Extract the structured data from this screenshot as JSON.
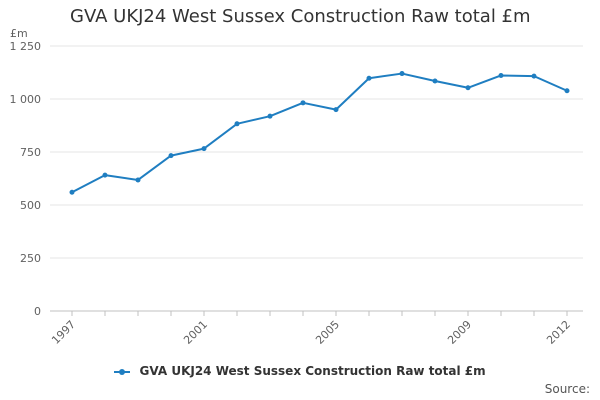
{
  "chart_data": {
    "type": "line",
    "title": "GVA UKJ24 West Sussex Construction Raw total £m",
    "unit_label": "£m",
    "xlabel": "",
    "ylabel": "",
    "x": [
      1997,
      1998,
      1999,
      2000,
      2001,
      2002,
      2003,
      2004,
      2005,
      2006,
      2007,
      2008,
      2009,
      2010,
      2011,
      2012
    ],
    "x_tick_labels": [
      "1997",
      "2001",
      "2005",
      "2009",
      "2012"
    ],
    "y_tick_labels": [
      "0",
      "250",
      "500",
      "750",
      "1 000",
      "1 250"
    ],
    "y_ticks": [
      0,
      250,
      500,
      750,
      1000,
      1250
    ],
    "ylim": [
      0,
      1250
    ],
    "xlim": [
      1997,
      2012
    ],
    "grid": true,
    "legend_position": "bottom",
    "series": [
      {
        "name": "GVA UKJ24 West Sussex Construction Raw total £m",
        "color": "#1f7ec1",
        "values": [
          560,
          641,
          618,
          733,
          766,
          883,
          919,
          982,
          950,
          1098,
          1120,
          1085,
          1053,
          1111,
          1108,
          1039
        ]
      }
    ],
    "source_label": "Source:"
  }
}
